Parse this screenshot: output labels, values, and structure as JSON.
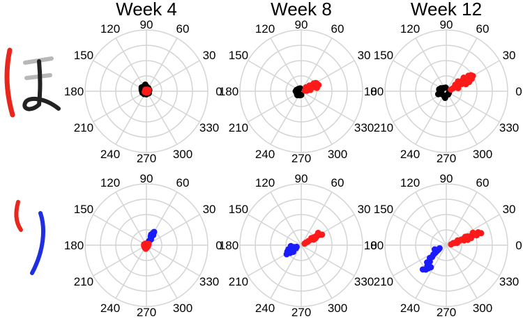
{
  "chart_data": {
    "type": "scatter",
    "coordinate_system": "polar",
    "angle_unit": "degrees",
    "angle_labels": [
      "0",
      "30",
      "60",
      "90",
      "120",
      "150",
      "180",
      "210",
      "240",
      "270",
      "300",
      "330"
    ],
    "angles": [
      0,
      30,
      60,
      90,
      120,
      150,
      180,
      210,
      240,
      270,
      300,
      330
    ],
    "rings": 4,
    "grid": true,
    "columns": [
      "Week 4",
      "Week 8",
      "Week 12"
    ],
    "rows": [
      {
        "character": "ほ",
        "stroke_colors": [
          "#555555",
          "#d9d9d9",
          "#222222"
        ],
        "mark_color": "#e8261c"
      },
      {
        "character": "り",
        "stroke_colors": [
          "#e8261c",
          "#1f2fe0"
        ]
      }
    ],
    "colors": {
      "black": "#000000",
      "red": "#ff1a1a",
      "blue": "#1a1aff",
      "grid": "#d4d4d4"
    },
    "panels": [
      {
        "row": 0,
        "col": 0,
        "series": [
          {
            "color": "black",
            "points": [
              [
                165,
                0.08
              ],
              [
                140,
                0.1
              ],
              [
                115,
                0.09
              ],
              [
                200,
                0.07
              ],
              [
                230,
                0.06
              ],
              [
                90,
                0.08
              ],
              [
                60,
                0.06
              ],
              [
                20,
                0.05
              ],
              [
                130,
                0.06
              ],
              [
                180,
                0.07
              ],
              [
                270,
                0.05
              ],
              [
                320,
                0.05
              ],
              [
                100,
                0.11
              ],
              [
                150,
                0.09
              ]
            ]
          },
          {
            "color": "red",
            "points": [
              [
                0,
                0.02
              ],
              [
                30,
                0.04
              ],
              [
                60,
                0.03
              ],
              [
                120,
                0.03
              ],
              [
                200,
                0.03
              ],
              [
                240,
                0.02
              ],
              [
                300,
                0.02
              ],
              [
                330,
                0.03
              ],
              [
                90,
                0.02
              ],
              [
                180,
                0.02
              ]
            ]
          }
        ]
      },
      {
        "row": 0,
        "col": 1,
        "series": [
          {
            "color": "black",
            "points": [
              [
                165,
                0.08
              ],
              [
                180,
                0.09
              ],
              [
                200,
                0.08
              ],
              [
                225,
                0.09
              ],
              [
                250,
                0.07
              ],
              [
                140,
                0.06
              ],
              [
                110,
                0.05
              ],
              [
                200,
                0.05
              ],
              [
                170,
                0.05
              ],
              [
                270,
                0.06
              ]
            ]
          },
          {
            "color": "red",
            "points": [
              [
                10,
                0.06
              ],
              [
                20,
                0.1
              ],
              [
                25,
                0.14
              ],
              [
                30,
                0.2
              ],
              [
                22,
                0.25
              ],
              [
                28,
                0.28
              ],
              [
                18,
                0.22
              ],
              [
                35,
                0.16
              ],
              [
                15,
                0.12
              ],
              [
                25,
                0.18
              ],
              [
                12,
                0.26
              ],
              [
                32,
                0.24
              ],
              [
                20,
                0.3
              ],
              [
                8,
                0.15
              ],
              [
                40,
                0.1
              ],
              [
                18,
                0.08
              ],
              [
                26,
                0.21
              ],
              [
                30,
                0.27
              ],
              [
                5,
                0.09
              ],
              [
                22,
                0.17
              ]
            ]
          }
        ]
      },
      {
        "row": 0,
        "col": 2,
        "series": [
          {
            "color": "black",
            "points": [
              [
                150,
                0.1
              ],
              [
                165,
                0.12
              ],
              [
                185,
                0.1
              ],
              [
                210,
                0.09
              ],
              [
                240,
                0.08
              ],
              [
                260,
                0.11
              ],
              [
                130,
                0.07
              ],
              [
                200,
                0.14
              ],
              [
                300,
                0.06
              ],
              [
                330,
                0.05
              ],
              [
                100,
                0.06
              ],
              [
                180,
                0.08
              ]
            ]
          },
          {
            "color": "red",
            "points": [
              [
                20,
                0.08
              ],
              [
                25,
                0.15
              ],
              [
                28,
                0.22
              ],
              [
                30,
                0.3
              ],
              [
                32,
                0.38
              ],
              [
                35,
                0.44
              ],
              [
                30,
                0.5
              ],
              [
                26,
                0.46
              ],
              [
                22,
                0.4
              ],
              [
                38,
                0.36
              ],
              [
                25,
                0.28
              ],
              [
                15,
                0.2
              ],
              [
                40,
                0.25
              ],
              [
                33,
                0.48
              ],
              [
                28,
                0.42
              ],
              [
                20,
                0.34
              ],
              [
                36,
                0.18
              ],
              [
                24,
                0.12
              ],
              [
                30,
                0.26
              ],
              [
                34,
                0.32
              ]
            ]
          }
        ]
      },
      {
        "row": 1,
        "col": 0,
        "series": [
          {
            "color": "blue",
            "points": [
              [
                55,
                0.1
              ],
              [
                58,
                0.14
              ],
              [
                60,
                0.18
              ],
              [
                62,
                0.22
              ],
              [
                56,
                0.2
              ],
              [
                64,
                0.16
              ],
              [
                52,
                0.12
              ],
              [
                60,
                0.25
              ],
              [
                58,
                0.08
              ],
              [
                66,
                0.19
              ]
            ]
          },
          {
            "color": "red",
            "points": [
              [
                200,
                0.04
              ],
              [
                240,
                0.05
              ],
              [
                280,
                0.04
              ],
              [
                320,
                0.03
              ],
              [
                0,
                0.03
              ],
              [
                30,
                0.04
              ],
              [
                120,
                0.03
              ],
              [
                160,
                0.04
              ],
              [
                90,
                0.02
              ],
              [
                260,
                0.06
              ]
            ]
          }
        ]
      },
      {
        "row": 1,
        "col": 1,
        "series": [
          {
            "color": "blue",
            "points": [
              [
                200,
                0.2
              ],
              [
                205,
                0.25
              ],
              [
                210,
                0.18
              ],
              [
                215,
                0.22
              ],
              [
                205,
                0.15
              ],
              [
                195,
                0.12
              ],
              [
                210,
                0.1
              ],
              [
                220,
                0.17
              ],
              [
                200,
                0.08
              ],
              [
                185,
                0.17
              ],
              [
                212,
                0.28
              ],
              [
                198,
                0.22
              ]
            ]
          },
          {
            "color": "red",
            "points": [
              [
                25,
                0.06
              ],
              [
                28,
                0.12
              ],
              [
                30,
                0.18
              ],
              [
                32,
                0.24
              ],
              [
                30,
                0.3
              ],
              [
                28,
                0.36
              ],
              [
                33,
                0.32
              ],
              [
                26,
                0.26
              ],
              [
                35,
                0.2
              ],
              [
                30,
                0.14
              ],
              [
                27,
                0.38
              ],
              [
                31,
                0.28
              ],
              [
                24,
                0.22
              ],
              [
                36,
                0.34
              ],
              [
                29,
                0.09
              ]
            ]
          }
        ]
      },
      {
        "row": 1,
        "col": 2,
        "series": [
          {
            "color": "blue",
            "points": [
              [
                210,
                0.15
              ],
              [
                215,
                0.22
              ],
              [
                220,
                0.3
              ],
              [
                225,
                0.38
              ],
              [
                228,
                0.46
              ],
              [
                230,
                0.52
              ],
              [
                222,
                0.42
              ],
              [
                218,
                0.34
              ],
              [
                232,
                0.48
              ],
              [
                216,
                0.26
              ],
              [
                212,
                0.18
              ],
              [
                205,
                0.12
              ],
              [
                226,
                0.55
              ],
              [
                235,
                0.44
              ],
              [
                200,
                0.2
              ]
            ]
          },
          {
            "color": "red",
            "points": [
              [
                10,
                0.08
              ],
              [
                15,
                0.14
              ],
              [
                18,
                0.22
              ],
              [
                20,
                0.3
              ],
              [
                22,
                0.38
              ],
              [
                20,
                0.46
              ],
              [
                18,
                0.52
              ],
              [
                22,
                0.56
              ],
              [
                16,
                0.42
              ],
              [
                24,
                0.34
              ],
              [
                12,
                0.18
              ],
              [
                20,
                0.26
              ],
              [
                25,
                0.48
              ],
              [
                14,
                0.36
              ],
              [
                19,
                0.6
              ],
              [
                17,
                0.12
              ],
              [
                21,
                0.44
              ],
              [
                23,
                0.2
              ],
              [
                15,
                0.3
              ],
              [
                22,
                0.5
              ]
            ]
          }
        ]
      }
    ]
  }
}
